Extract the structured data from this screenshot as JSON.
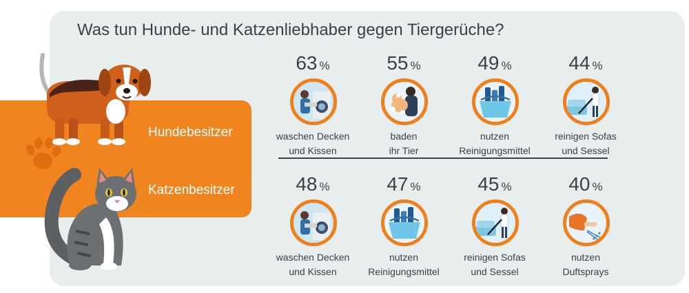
{
  "title": "Was tun Hunde- und Katzenliebhaber gegen Tiergerüche?",
  "colors": {
    "accent": "#ef7f1a",
    "panel": "#e8eded",
    "text": "#3b4047"
  },
  "chart_data": {
    "type": "bar",
    "title": "Was tun Hunde- und Katzenliebhaber gegen Tiergerüche?",
    "unit": "%",
    "series": [
      {
        "name": "Hundebesitzer",
        "items": [
          {
            "value": "63",
            "label1": "waschen Decken",
            "label2": "und Kissen",
            "icon": "washing-machine-icon"
          },
          {
            "value": "55",
            "label1": "baden",
            "label2": "ihr Tier",
            "icon": "bathing-dog-icon"
          },
          {
            "value": "49",
            "label1": "nutzen",
            "label2": "Reinigungsmittel",
            "icon": "cleaning-bucket-icon"
          },
          {
            "value": "44",
            "label1": "reinigen Sofas",
            "label2": "und Sessel",
            "icon": "vacuum-sofa-icon"
          }
        ]
      },
      {
        "name": "Katzenbesitzer",
        "items": [
          {
            "value": "48",
            "label1": "waschen Decken",
            "label2": "und Kissen",
            "icon": "washing-machine-icon"
          },
          {
            "value": "47",
            "label1": "nutzen",
            "label2": "Reinigungsmittel",
            "icon": "cleaning-bucket-icon"
          },
          {
            "value": "45",
            "label1": "reinigen Sofas",
            "label2": "und Sessel",
            "icon": "vacuum-sofa-icon"
          },
          {
            "value": "40",
            "label1": "nutzen",
            "label2": "Duftsprays",
            "icon": "spray-bottle-icon"
          }
        ]
      }
    ]
  }
}
